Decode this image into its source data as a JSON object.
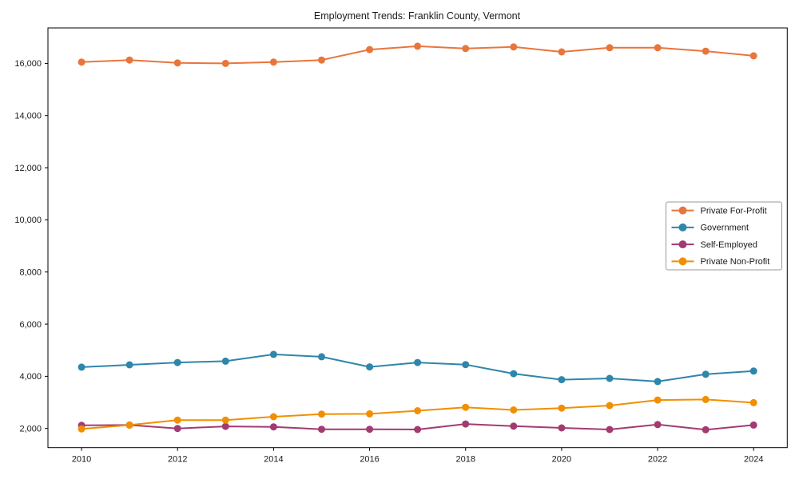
{
  "chart_data": {
    "type": "line",
    "title": "Employment Trends: Franklin County, Vermont",
    "xlabel": "",
    "ylabel": "",
    "x": [
      2010,
      2011,
      2012,
      2013,
      2014,
      2015,
      2016,
      2017,
      2018,
      2019,
      2020,
      2021,
      2022,
      2023,
      2024
    ],
    "xticks": [
      2010,
      2012,
      2014,
      2016,
      2018,
      2020,
      2022,
      2024
    ],
    "yticks": [
      2000,
      4000,
      6000,
      8000,
      10000,
      12000,
      14000,
      16000
    ],
    "xlim": [
      2009.3,
      2024.7
    ],
    "ylim": [
      1265,
      17360
    ],
    "grid": false,
    "legend_position": "right",
    "axis_color": "#000000",
    "series": [
      {
        "name": "Private For-Profit",
        "color": "#E8763C",
        "values": [
          16050,
          16130,
          16020,
          16000,
          16050,
          16130,
          16530,
          16660,
          16570,
          16630,
          16440,
          16600,
          16600,
          16470,
          16290
        ]
      },
      {
        "name": "Government",
        "color": "#2E86AB",
        "values": [
          4350,
          4440,
          4530,
          4580,
          4840,
          4750,
          4360,
          4530,
          4450,
          4100,
          3870,
          3920,
          3800,
          4080,
          4200
        ]
      },
      {
        "name": "Self-Employed",
        "color": "#A23B72",
        "values": [
          2120,
          2130,
          2000,
          2080,
          2060,
          1970,
          1970,
          1960,
          2170,
          2090,
          2020,
          1960,
          2150,
          1950,
          2130
        ]
      },
      {
        "name": "Private Non-Profit",
        "color": "#F18F01",
        "values": [
          1980,
          2130,
          2320,
          2320,
          2450,
          2550,
          2560,
          2680,
          2810,
          2710,
          2780,
          2880,
          3090,
          3110,
          2990
        ]
      }
    ]
  }
}
